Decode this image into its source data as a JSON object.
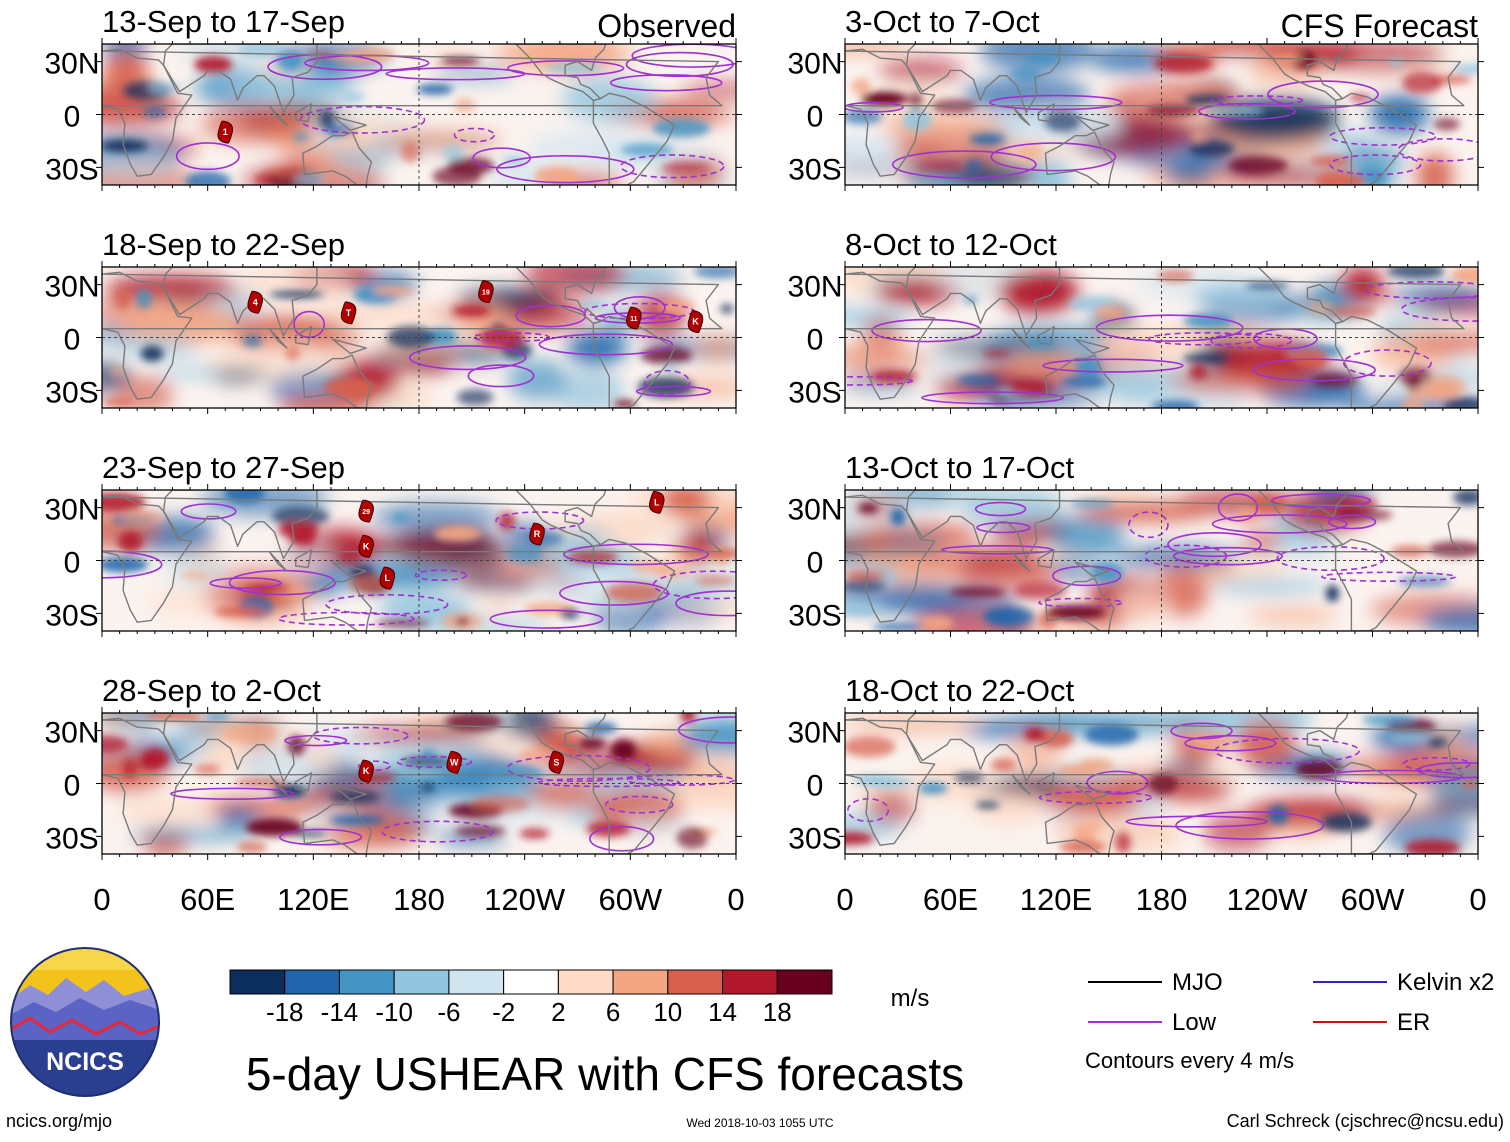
{
  "header": {
    "observed_label": "Observed",
    "forecast_label": "CFS Forecast"
  },
  "panels": {
    "observed": [
      {
        "title": "13-Sep to 17-Sep",
        "storms": [
          {
            "label": "1",
            "lon": 70,
            "lat": -10
          }
        ]
      },
      {
        "title": "18-Sep to 22-Sep",
        "storms": [
          {
            "label": "4",
            "lon": 87,
            "lat": 20
          },
          {
            "label": "T",
            "lon": 140,
            "lat": 14
          },
          {
            "label": "19",
            "lon": 218,
            "lat": 26
          },
          {
            "label": "11",
            "lon": 302,
            "lat": 11
          },
          {
            "label": "K",
            "lon": 337,
            "lat": 9
          }
        ]
      },
      {
        "title": "23-Sep to 27-Sep",
        "storms": [
          {
            "label": "29",
            "lon": 150,
            "lat": 28
          },
          {
            "label": "K",
            "lon": 150,
            "lat": 8
          },
          {
            "label": "L",
            "lon": 162,
            "lat": -10
          },
          {
            "label": "R",
            "lon": 247,
            "lat": 15
          },
          {
            "label": "L",
            "lon": 315,
            "lat": 33
          }
        ]
      },
      {
        "title": "28-Sep to 2-Oct",
        "storms": [
          {
            "label": "K",
            "lon": 150,
            "lat": 7
          },
          {
            "label": "W",
            "lon": 200,
            "lat": 12
          },
          {
            "label": "S",
            "lon": 258,
            "lat": 12
          }
        ]
      }
    ],
    "forecast": [
      {
        "title": "3-Oct to 7-Oct"
      },
      {
        "title": "8-Oct to 12-Oct"
      },
      {
        "title": "13-Oct to 17-Oct"
      },
      {
        "title": "18-Oct to 22-Oct"
      }
    ]
  },
  "axes": {
    "lat_labels": [
      "30N",
      "0",
      "30S"
    ],
    "lon_labels": [
      "0",
      "60E",
      "120E",
      "180",
      "120W",
      "60W",
      "0"
    ]
  },
  "colorbar": {
    "colors": [
      "#0b2e5c",
      "#2166ac",
      "#4393c3",
      "#92c5de",
      "#d1e5f0",
      "#ffffff",
      "#fddbc7",
      "#f4a582",
      "#d6604d",
      "#b2182b",
      "#67001f"
    ],
    "tick_labels": [
      "-18",
      "-14",
      "-10",
      "-6",
      "-2",
      "2",
      "6",
      "10",
      "14",
      "18"
    ],
    "units": "m/s"
  },
  "legend": {
    "items": [
      {
        "label": "MJO",
        "color": "#000000"
      },
      {
        "label": "Kelvin x2",
        "color": "#3322bb"
      },
      {
        "label": "Low",
        "color": "#a030d0"
      },
      {
        "label": "ER",
        "color": "#cc1111"
      }
    ],
    "contour_note": "Contours every 4 m/s"
  },
  "footer": {
    "title": "5-day USHEAR with CFS forecasts",
    "website": "ncics.org/mjo",
    "timestamp": "Wed 2018-10-03 1055 UTC",
    "author": "Carl Schreck (cjschrec@ncsu.edu)",
    "logo_text": "NCICS"
  }
}
